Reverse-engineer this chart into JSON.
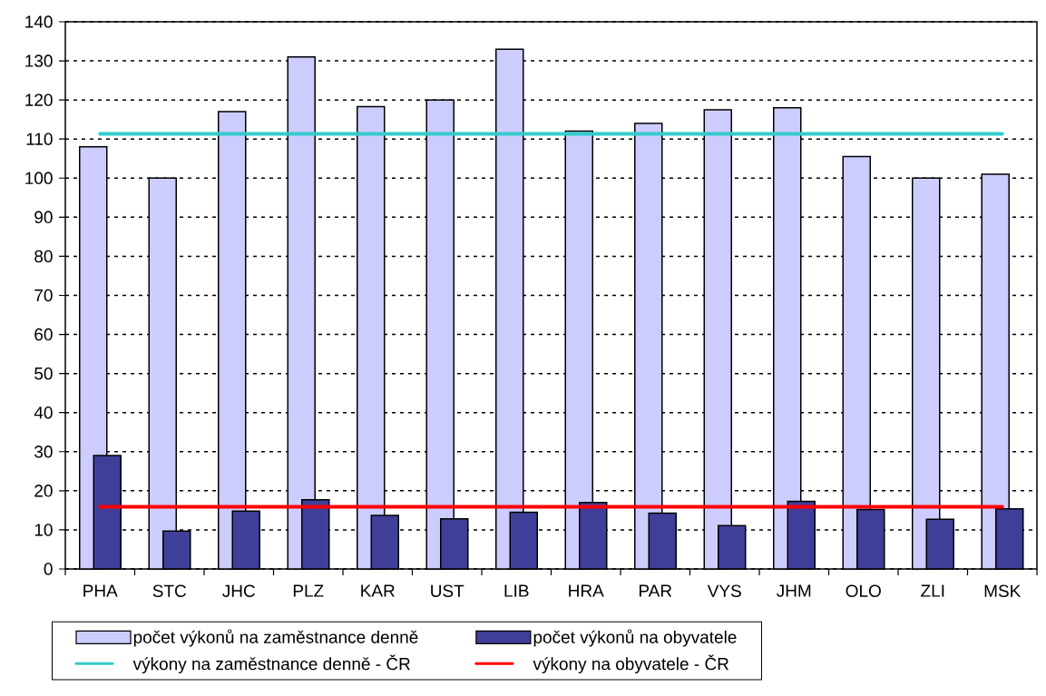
{
  "chart_data": {
    "type": "bar",
    "categories": [
      "PHA",
      "STC",
      "JHC",
      "PLZ",
      "KAR",
      "UST",
      "LIB",
      "HRA",
      "PAR",
      "VYS",
      "JHM",
      "OLO",
      "ZLI",
      "MSK"
    ],
    "series": [
      {
        "name": "počet výkonů na zaměstnance denně",
        "color": "#ccccff",
        "values": [
          108,
          100,
          117,
          131,
          118.3,
          120,
          133,
          112,
          114,
          117.5,
          118,
          105.5,
          100,
          101
        ]
      },
      {
        "name": "počet výkonů na obyvatele",
        "color": "#3f3f99",
        "values": [
          29,
          9.7,
          14.8,
          17.7,
          13.7,
          12.8,
          14.5,
          17,
          14.3,
          11.1,
          17.3,
          15.2,
          12.7,
          15.4
        ]
      }
    ],
    "ref_lines": [
      {
        "axis": "y",
        "value": 111.3,
        "label": "výkony na zaměstnance denně - ČR",
        "color": "#33cccc"
      },
      {
        "axis": "y",
        "value": 15.9,
        "label": "výkony na obyvatele - ČR",
        "color": "#ff0000"
      }
    ],
    "ylim": [
      0,
      140
    ],
    "yticks": [
      0,
      10,
      20,
      30,
      40,
      50,
      60,
      70,
      80,
      90,
      100,
      110,
      120,
      130,
      140
    ],
    "grid": "y",
    "legend": "bottom"
  }
}
